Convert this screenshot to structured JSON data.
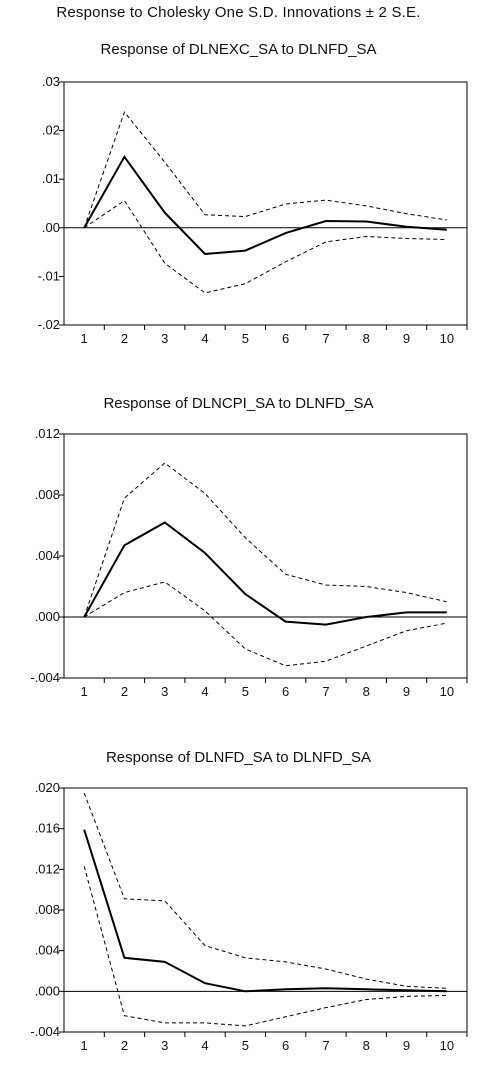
{
  "title": "Response to Cholesky One S.D. Innovations ± 2 S.E.",
  "chart_data": [
    {
      "type": "line",
      "title": "Response of DLNEXC_SA to DLNFD_SA",
      "x": [
        1,
        2,
        3,
        4,
        5,
        6,
        7,
        8,
        9,
        10
      ],
      "ylim": [
        -0.02,
        0.03
      ],
      "yticks": [
        ".03",
        ".02",
        ".01",
        ".00",
        "-.01",
        "-.02"
      ],
      "ytick_values": [
        0.03,
        0.02,
        0.01,
        0.0,
        -0.01,
        -0.02
      ],
      "xticks": [
        "1",
        "2",
        "3",
        "4",
        "5",
        "6",
        "7",
        "8",
        "9",
        "10"
      ],
      "grid": false,
      "series": [
        {
          "style": "solid",
          "values": [
            0.0,
            0.0146,
            0.0031,
            -0.0054,
            -0.0047,
            -0.0011,
            0.0014,
            0.0013,
            0.0002,
            -0.0004
          ]
        },
        {
          "style": "dashed",
          "values": [
            0.0,
            0.0238,
            0.0135,
            0.0027,
            0.0023,
            0.0049,
            0.0057,
            0.0045,
            0.0029,
            0.0016
          ]
        },
        {
          "style": "dashed",
          "values": [
            0.0,
            0.0056,
            -0.0073,
            -0.0134,
            -0.0115,
            -0.007,
            -0.0029,
            -0.0018,
            -0.0022,
            -0.0024
          ]
        }
      ]
    },
    {
      "type": "line",
      "title": "Response of DLNCPI_SA to DLNFD_SA",
      "x": [
        1,
        2,
        3,
        4,
        5,
        6,
        7,
        8,
        9,
        10
      ],
      "ylim": [
        -0.004,
        0.012
      ],
      "yticks": [
        ".012",
        ".008",
        ".004",
        ".000",
        "-.004"
      ],
      "ytick_values": [
        0.012,
        0.008,
        0.004,
        0.0,
        -0.004
      ],
      "xticks": [
        "1",
        "2",
        "3",
        "4",
        "5",
        "6",
        "7",
        "8",
        "9",
        "10"
      ],
      "grid": false,
      "series": [
        {
          "style": "solid",
          "values": [
            0.0,
            0.0047,
            0.0062,
            0.0042,
            0.0015,
            -0.0003,
            -0.0005,
            0.0,
            0.0003,
            0.0003
          ]
        },
        {
          "style": "dashed",
          "values": [
            0.0,
            0.0078,
            0.0101,
            0.0081,
            0.0052,
            0.0028,
            0.0021,
            0.002,
            0.0016,
            0.001
          ]
        },
        {
          "style": "dashed",
          "values": [
            0.0,
            0.0016,
            0.0023,
            0.0004,
            -0.0021,
            -0.0032,
            -0.0029,
            -0.0019,
            -0.0009,
            -0.0004
          ]
        }
      ]
    },
    {
      "type": "line",
      "title": "Response of DLNFD_SA to DLNFD_SA",
      "x": [
        1,
        2,
        3,
        4,
        5,
        6,
        7,
        8,
        9,
        10
      ],
      "ylim": [
        -0.004,
        0.02
      ],
      "yticks": [
        ".020",
        ".016",
        ".012",
        ".008",
        ".004",
        ".000",
        "-.004"
      ],
      "ytick_values": [
        0.02,
        0.016,
        0.012,
        0.008,
        0.004,
        0.0,
        -0.004
      ],
      "xticks": [
        "1",
        "2",
        "3",
        "4",
        "5",
        "6",
        "7",
        "8",
        "9",
        "10"
      ],
      "grid": false,
      "series": [
        {
          "style": "solid",
          "values": [
            0.0159,
            0.0033,
            0.0029,
            0.0008,
            0.0,
            0.0002,
            0.0003,
            0.0002,
            0.0001,
            0.0
          ]
        },
        {
          "style": "dashed",
          "values": [
            0.0195,
            0.0091,
            0.0089,
            0.0045,
            0.0033,
            0.0029,
            0.0022,
            0.0012,
            0.0005,
            0.0003
          ]
        },
        {
          "style": "dashed",
          "values": [
            0.0123,
            -0.0024,
            -0.0031,
            -0.0031,
            -0.0034,
            -0.0025,
            -0.0016,
            -0.0008,
            -0.0005,
            -0.0004
          ]
        }
      ]
    }
  ]
}
